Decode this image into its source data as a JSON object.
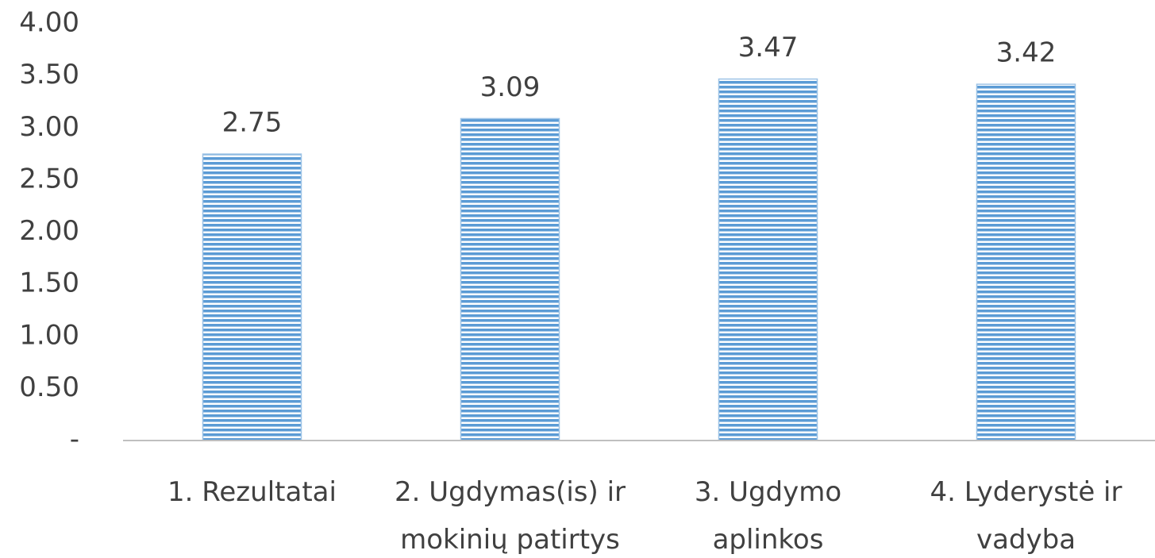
{
  "chart_data": {
    "type": "bar",
    "categories": [
      "1. Rezultatai",
      "2. Ugdymas(is) ir mokinių patirtys",
      "3. Ugdymo aplinkos",
      "4. Lyderystė ir vadyba"
    ],
    "values": [
      2.75,
      3.09,
      3.47,
      3.42
    ],
    "color": "#5b9bd5",
    "ylim": [
      0,
      4
    ],
    "yticks": [
      {
        "value": 0,
        "label": "-"
      },
      {
        "value": 0.5,
        "label": "0.50"
      },
      {
        "value": 1,
        "label": "1.00"
      },
      {
        "value": 1.5,
        "label": "1.50"
      },
      {
        "value": 2,
        "label": "2.00"
      },
      {
        "value": 2.5,
        "label": "2.50"
      },
      {
        "value": 3,
        "label": "3.00"
      },
      {
        "value": 3.5,
        "label": "3.50"
      },
      {
        "value": 4,
        "label": "4.00"
      }
    ],
    "grid": false
  }
}
